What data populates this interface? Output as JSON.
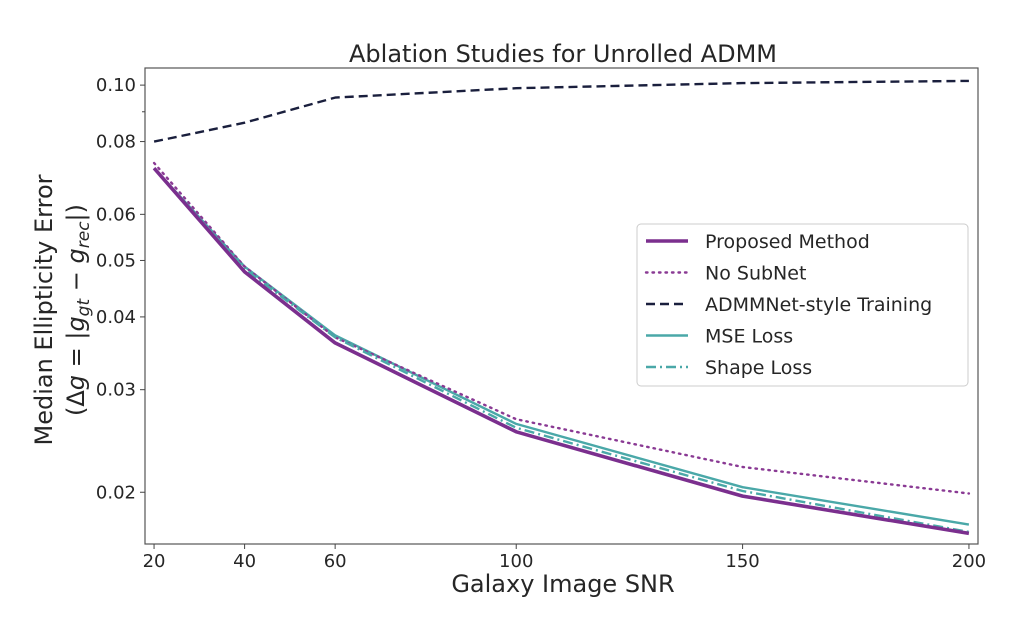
{
  "chart_data": {
    "type": "line",
    "title": "Ablation Studies for Unrolled ADMM",
    "xlabel": "Galaxy Image SNR",
    "ylabel_line1": "Median Ellipticity Error",
    "ylabel_line2_parts": [
      "(Δ",
      "g",
      " = |",
      "g",
      "gt",
      " − ",
      "g",
      "rec",
      "|)"
    ],
    "ylabel_line2": "(Δg = |g_gt − g_rec|)",
    "yscale": "log",
    "x": [
      20,
      40,
      60,
      100,
      150,
      200
    ],
    "xticks": [
      20,
      40,
      60,
      100,
      150,
      200
    ],
    "xtick_labels": [
      "20",
      "40",
      "60",
      "100",
      "150",
      "200"
    ],
    "xlim": [
      18,
      202
    ],
    "yticks": [
      0.02,
      0.03,
      0.04,
      0.05,
      0.06,
      0.08,
      0.1
    ],
    "ytick_labels": [
      "0.02",
      "0.03",
      "0.04",
      "0.05",
      "0.06",
      "0.08",
      "0.10"
    ],
    "yminor_ticks": [
      0.09
    ],
    "ylim": [
      0.0163,
      0.107
    ],
    "grid": false,
    "legend_position": "center-right",
    "series": [
      {
        "name": "Proposed Method",
        "style": "solid",
        "width": "thick",
        "color": "#7b2f8e",
        "values": [
          0.072,
          0.0478,
          0.0361,
          0.0254,
          0.0197,
          0.017
        ]
      },
      {
        "name": "No SubNet",
        "style": "dotted",
        "width": "normal",
        "color": "#8a3a94",
        "values": [
          0.0735,
          0.0488,
          0.0369,
          0.0267,
          0.0221,
          0.0199
        ]
      },
      {
        "name": "ADMMNet-style Training",
        "style": "dashed",
        "width": "normal",
        "color": "#1a1f3d",
        "values": [
          0.08,
          0.0862,
          0.0952,
          0.0988,
          0.1008,
          0.1017
        ]
      },
      {
        "name": "MSE Loss",
        "style": "solid",
        "width": "normal",
        "color": "#4aa8a8",
        "values": [
          0.072,
          0.0488,
          0.0372,
          0.0262,
          0.0204,
          0.0176
        ]
      },
      {
        "name": "Shape Loss",
        "style": "dashdot",
        "width": "normal",
        "color": "#4aa8a8",
        "values": [
          0.072,
          0.0484,
          0.0369,
          0.0258,
          0.0201,
          0.0171
        ]
      }
    ]
  }
}
